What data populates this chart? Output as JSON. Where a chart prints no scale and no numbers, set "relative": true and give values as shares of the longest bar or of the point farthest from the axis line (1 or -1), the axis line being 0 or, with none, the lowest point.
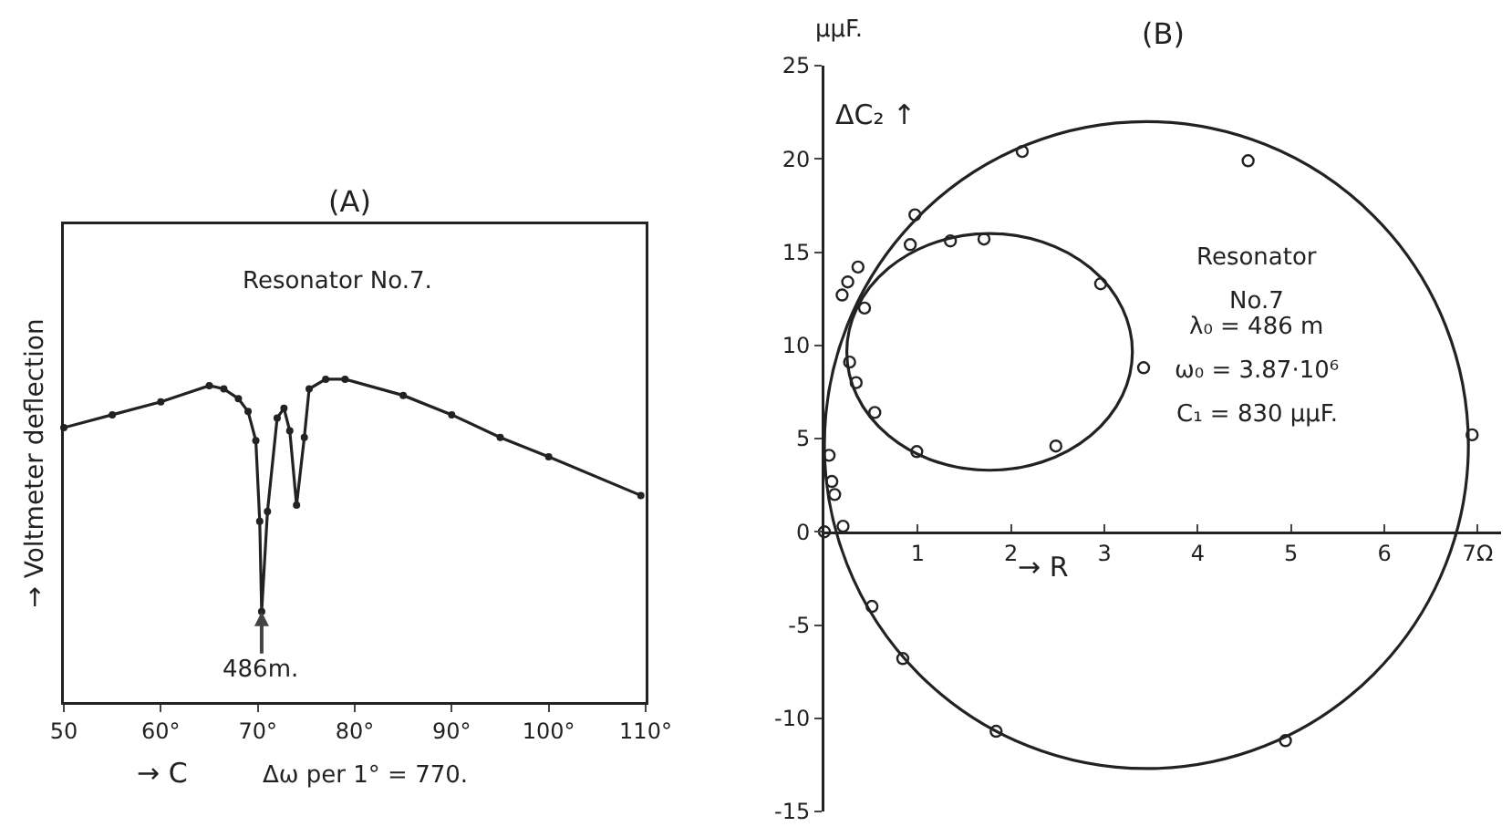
{
  "chart_data": [
    {
      "type": "line",
      "title": "(A)",
      "xlabel": "→ C",
      "ylabel": "→ Voltmeter deflection",
      "relative": true,
      "tick_labels": "x",
      "grid": false,
      "xlim": [
        50,
        110
      ],
      "xticks": [
        50,
        {
          "value": 60,
          "label": "60°"
        },
        {
          "value": 70,
          "label": "70°"
        },
        {
          "value": 80,
          "label": "80°"
        },
        {
          "value": 90,
          "label": "90°"
        },
        {
          "value": 100,
          "label": "100°"
        },
        {
          "value": 110,
          "label": "110°"
        }
      ],
      "marker": "circle",
      "annotations": [
        "Resonator No.7.",
        {
          "text": "486m.",
          "x": 70.4,
          "y": 0.28
        },
        "Δω per 1° = 770."
      ],
      "series": [
        {
          "color": "#222222",
          "x": [
            50,
            55,
            60,
            65,
            66.5,
            68,
            69,
            69.8,
            70.2,
            70.4,
            71,
            72,
            72.7,
            73.3,
            74,
            74.8,
            75.3,
            77,
            79,
            85,
            90,
            95,
            100,
            109.5
          ],
          "values": [
            0.85,
            0.89,
            0.93,
            0.98,
            0.97,
            0.94,
            0.9,
            0.81,
            0.56,
            0.28,
            0.59,
            0.88,
            0.91,
            0.84,
            0.61,
            0.82,
            0.97,
            1,
            1,
            0.95,
            0.89,
            0.82,
            0.76,
            0.64
          ]
        }
      ]
    },
    {
      "type": "scatter",
      "title": "(B)",
      "xlabel": "→ R",
      "ylabel": "ΔC₂ ↑",
      "grid": false,
      "xlim": [
        0,
        7.25
      ],
      "xticks": [
        1,
        2,
        3,
        4,
        5,
        6,
        {
          "value": 7,
          "label": "7Ω"
        }
      ],
      "ylim": [
        -15,
        25
      ],
      "yticks": [
        -15,
        -10,
        -5,
        0,
        5,
        10,
        15,
        20,
        25
      ],
      "annotations": [
        "μμF.",
        "Resonator",
        "No.7",
        "λ₀ = 486 m",
        "ω₀ = 3.87·10⁶",
        "C₁ = 830 μμF."
      ],
      "series": [
        {
          "type": "scatter",
          "marker": "circle",
          "color": "#222222",
          "x": [
            2.12,
            4.54,
            0.97,
            6.94,
            0.19,
            0.25,
            0.36,
            0.05,
            0.08,
            0.11,
            0.2,
            0,
            0.51,
            0.84,
            1.84,
            4.94,
            0.92,
            1.35,
            1.71,
            2.96,
            3.42,
            2.48,
            0.99,
            0.54,
            0.34,
            0.27,
            0.43
          ],
          "values": [
            20.4,
            19.9,
            17,
            5.2,
            12.7,
            13.4,
            14.2,
            4.1,
            2.7,
            2,
            0.3,
            0,
            -4,
            -6.8,
            -10.7,
            -11.2,
            15.4,
            15.6,
            15.7,
            13.3,
            8.8,
            4.6,
            4.3,
            6.4,
            8,
            9.1,
            12
          ]
        }
      ]
    }
  ]
}
